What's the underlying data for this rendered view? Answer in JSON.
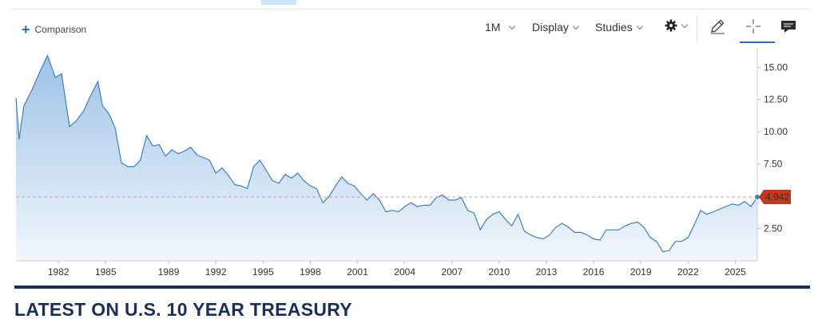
{
  "toolbar": {
    "comparison_label": "Comparison",
    "timeframe": "1M",
    "display_label": "Display",
    "studies_label": "Studies"
  },
  "headline": "LATEST ON U.S. 10 YEAR TREASURY",
  "chart_data": {
    "type": "area",
    "series": [
      {
        "x": [
          1979.3,
          1979.5,
          1979.8,
          1980.3,
          1980.8,
          1981.3,
          1981.8,
          1982.2,
          1982.7,
          1983.1,
          1983.6,
          1984.0,
          1984.5,
          1984.8,
          1985.2,
          1985.6,
          1986.0,
          1986.4,
          1986.8,
          1987.2,
          1987.6,
          1988.0,
          1988.4,
          1988.8,
          1989.2,
          1989.6,
          1990.0,
          1990.4,
          1990.8,
          1991.2,
          1991.6,
          1992.0,
          1992.4,
          1992.8,
          1993.2,
          1993.6,
          1994.0,
          1994.4,
          1994.8,
          1995.2,
          1995.6,
          1996.0,
          1996.4,
          1996.8,
          1997.2,
          1997.6,
          1998.0,
          1998.4,
          1998.8,
          1999.2,
          1999.6,
          2000.0,
          2000.4,
          2000.8,
          2001.2,
          2001.6,
          2002.0,
          2002.4,
          2002.8,
          2003.2,
          2003.6,
          2004.0,
          2004.4,
          2004.8,
          2005.2,
          2005.6,
          2006.0,
          2006.4,
          2006.8,
          2007.2,
          2007.6,
          2008.0,
          2008.4,
          2008.8,
          2009.2,
          2009.6,
          2010.0,
          2010.4,
          2010.8,
          2011.2,
          2011.6,
          2012.0,
          2012.4,
          2012.8,
          2013.2,
          2013.6,
          2014.0,
          2014.4,
          2014.8,
          2015.2,
          2015.6,
          2016.0,
          2016.4,
          2016.8,
          2017.2,
          2017.6,
          2018.0,
          2018.4,
          2018.8,
          2019.2,
          2019.6,
          2020.0,
          2020.4,
          2020.8,
          2021.2,
          2021.6,
          2022.0,
          2022.4,
          2022.8,
          2023.2,
          2023.6,
          2024.0,
          2024.4,
          2024.8,
          2025.2,
          2025.6,
          2026.0,
          2026.4
        ],
        "y": [
          12.6,
          9.4,
          12.0,
          13.2,
          14.6,
          15.9,
          14.2,
          14.5,
          10.4,
          10.8,
          11.6,
          12.7,
          13.9,
          12.0,
          11.4,
          10.3,
          7.6,
          7.3,
          7.3,
          7.8,
          9.7,
          8.9,
          9.0,
          8.1,
          8.6,
          8.3,
          8.5,
          8.8,
          8.2,
          8.0,
          7.8,
          6.8,
          7.2,
          6.6,
          5.9,
          5.8,
          5.6,
          7.3,
          7.8,
          7.0,
          6.2,
          6.0,
          6.7,
          6.4,
          6.8,
          6.2,
          5.8,
          5.6,
          4.5,
          5.0,
          5.8,
          6.5,
          6.0,
          5.8,
          5.2,
          4.7,
          5.2,
          4.7,
          3.8,
          3.9,
          3.8,
          4.2,
          4.5,
          4.2,
          4.3,
          4.3,
          4.9,
          5.1,
          4.7,
          4.7,
          4.9,
          3.9,
          3.7,
          2.4,
          3.2,
          3.6,
          3.8,
          3.2,
          2.7,
          3.6,
          2.3,
          2.0,
          1.8,
          1.7,
          2.0,
          2.6,
          2.9,
          2.6,
          2.2,
          2.2,
          2.0,
          1.7,
          1.6,
          2.4,
          2.4,
          2.4,
          2.7,
          2.9,
          3.0,
          2.6,
          1.8,
          1.5,
          0.7,
          0.8,
          1.5,
          1.5,
          1.8,
          2.8,
          3.9,
          3.6,
          3.8,
          4.0,
          4.2,
          4.4,
          4.3,
          4.6,
          4.2,
          4.942
        ]
      }
    ],
    "last_value": "4.942",
    "xlim": [
      1979.3,
      2026.4
    ],
    "ylim": [
      0,
      16.5
    ],
    "x_ticks": [
      1982,
      1985,
      1989,
      1992,
      1995,
      1998,
      2001,
      2004,
      2007,
      2010,
      2013,
      2016,
      2019,
      2022,
      2025
    ],
    "x_tick_labels": [
      "1982",
      "1985",
      "1989",
      "1992",
      "1995",
      "1998",
      "2001",
      "2004",
      "2007",
      "2010",
      "2013",
      "2016",
      "2019",
      "2022",
      "2025"
    ],
    "y_ticks": [
      2.5,
      5,
      7.5,
      10,
      12.5,
      15
    ],
    "y_tick_labels": [
      "2.50",
      "",
      "7.50",
      "10.00",
      "12.50",
      "15.00"
    ],
    "reference_line": 4.942,
    "colors": {
      "line": "#3a82c4",
      "fill_top": "#9ec2e6",
      "fill_bottom": "#f2f7fc",
      "reference": "#e89a86",
      "badge": "#c9361d"
    }
  }
}
